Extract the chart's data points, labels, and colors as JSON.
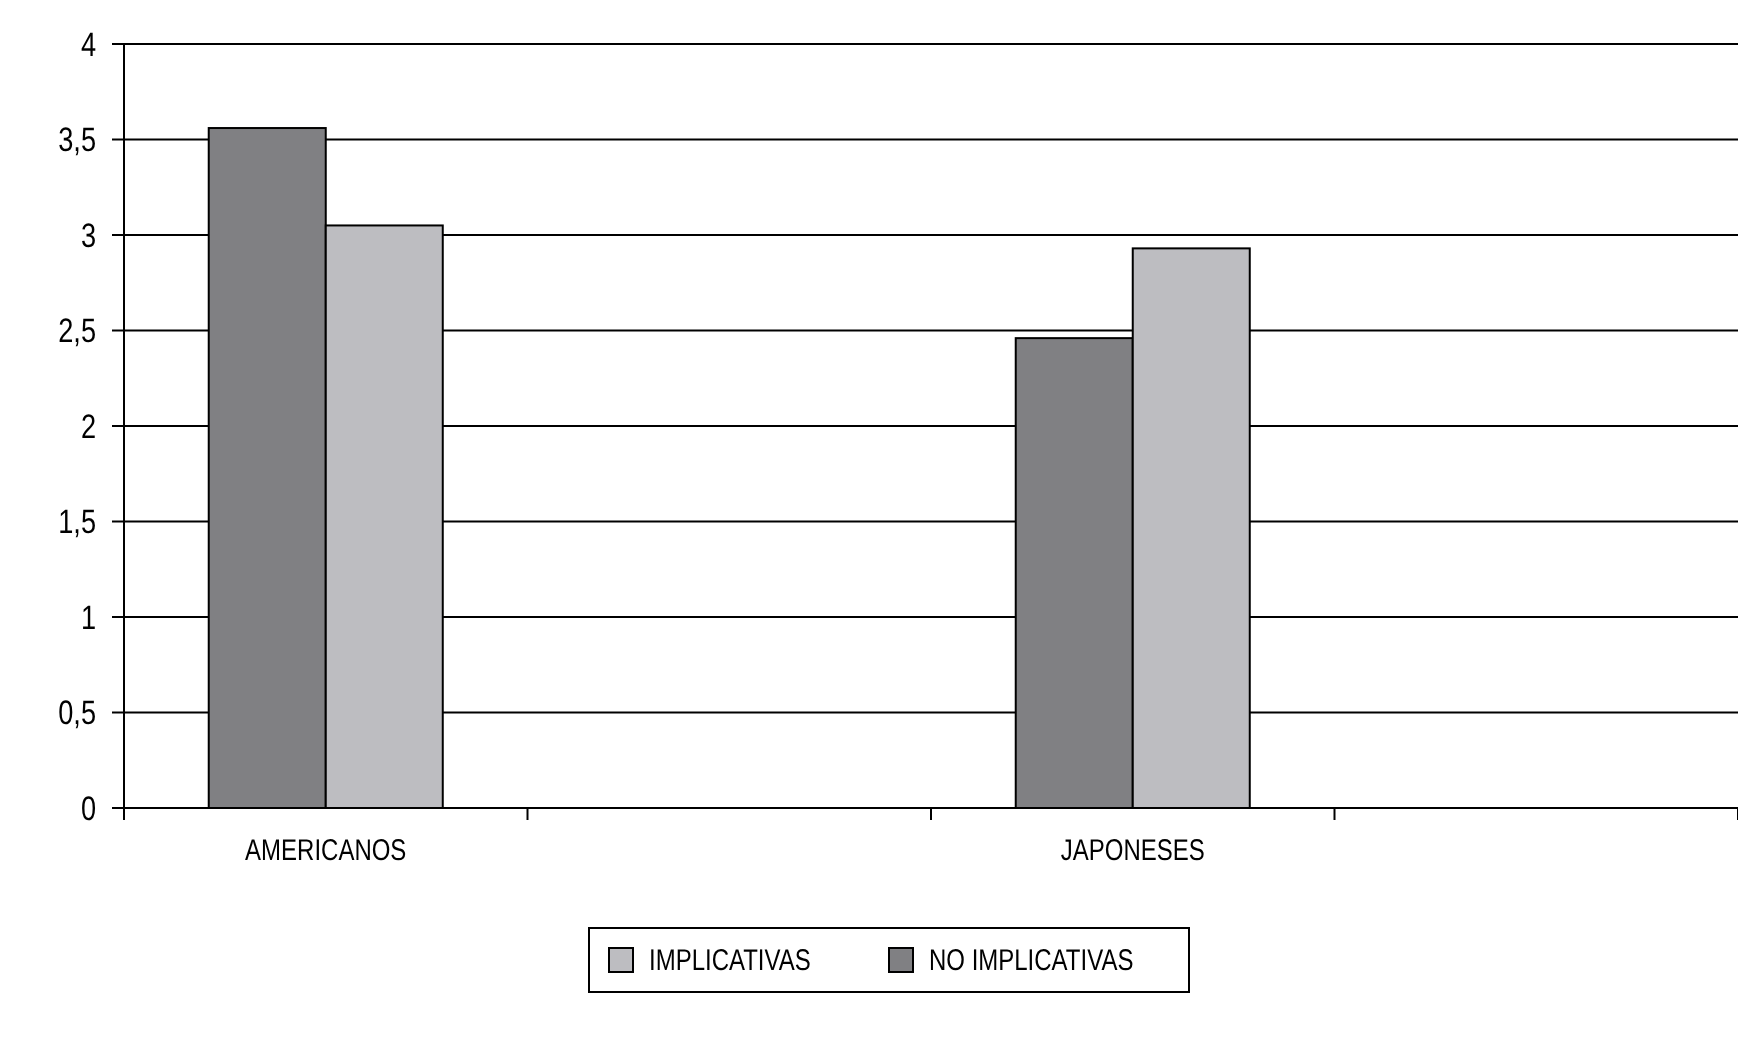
{
  "chart_data": {
    "type": "bar",
    "categories": [
      "AMERICANOS",
      null,
      "JAPONESES",
      null
    ],
    "series": [
      {
        "name": "NO IMPLICATIVAS",
        "color": "#808083",
        "values": [
          3.56,
          null,
          2.46,
          null
        ]
      },
      {
        "name": "IMPLICATIVAS",
        "color": "#bdbdc1",
        "values": [
          3.05,
          null,
          2.93,
          null
        ]
      }
    ],
    "ylim": [
      0,
      4
    ],
    "yticks": [
      {
        "value": 0,
        "label": "0"
      },
      {
        "value": 0.5,
        "label": "0,5"
      },
      {
        "value": 1,
        "label": "1"
      },
      {
        "value": 1.5,
        "label": "1,5"
      },
      {
        "value": 2,
        "label": "2"
      },
      {
        "value": 2.5,
        "label": "2,5"
      },
      {
        "value": 3,
        "label": "3"
      },
      {
        "value": 3.5,
        "label": "3,5"
      },
      {
        "value": 4,
        "label": "4"
      }
    ],
    "grid": "y",
    "legend": "bottom"
  }
}
